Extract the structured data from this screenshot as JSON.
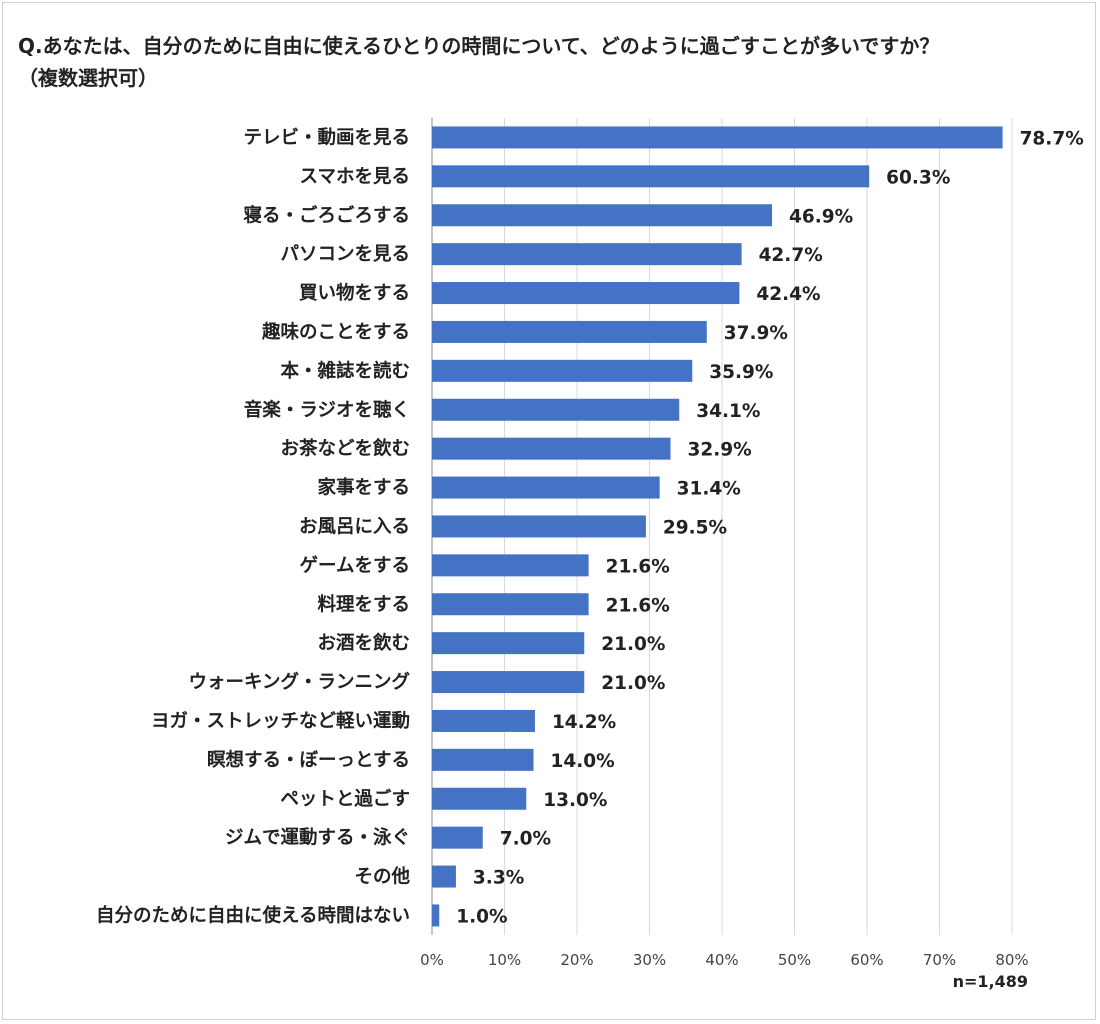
{
  "title_line1": "Q.あなたは、自分のために自由に使えるひとりの時間について、どのように過ごすことが多いですか？",
  "title_line2": "（複数選択可）",
  "sample_note": "n=1,489",
  "colors": {
    "bar": "#4472C4",
    "grid": "#d9d9d9",
    "axis": "#8c8c8c"
  },
  "chart_data": {
    "type": "bar",
    "orientation": "horizontal",
    "title": "Q.あなたは、自分のために自由に使えるひとりの時間について、どのように過ごすことが多いですか？（複数選択可）",
    "categories": [
      "テレビ・動画を見る",
      "スマホを見る",
      "寝る・ごろごろする",
      "パソコンを見る",
      "買い物をする",
      "趣味のことをする",
      "本・雑誌を読む",
      "音楽・ラジオを聴く",
      "お茶などを飲む",
      "家事をする",
      "お風呂に入る",
      "ゲームをする",
      "料理をする",
      "お酒を飲む",
      "ウォーキング・ランニング",
      "ヨガ・ストレッチなど軽い運動",
      "瞑想する・ぼーっとする",
      "ペットと過ごす",
      "ジムで運動する・泳ぐ",
      "その他",
      "自分のために自由に使える時間はない"
    ],
    "values": [
      78.7,
      60.3,
      46.9,
      42.7,
      42.4,
      37.9,
      35.9,
      34.1,
      32.9,
      31.4,
      29.5,
      21.6,
      21.6,
      21.0,
      21.0,
      14.2,
      14.0,
      13.0,
      7.0,
      3.3,
      1.0
    ],
    "value_labels": [
      "78.7%",
      "60.3%",
      "46.9%",
      "42.7%",
      "42.4%",
      "37.9%",
      "35.9%",
      "34.1%",
      "32.9%",
      "31.4%",
      "29.5%",
      "21.6%",
      "21.6%",
      "21.0%",
      "21.0%",
      "14.2%",
      "14.0%",
      "13.0%",
      "7.0%",
      "3.3%",
      "1.0%"
    ],
    "xlim": [
      0,
      80
    ],
    "xticks": [
      "0%",
      "10%",
      "20%",
      "30%",
      "40%",
      "50%",
      "60%",
      "70%",
      "80%"
    ],
    "grid": true,
    "unit": "%"
  }
}
